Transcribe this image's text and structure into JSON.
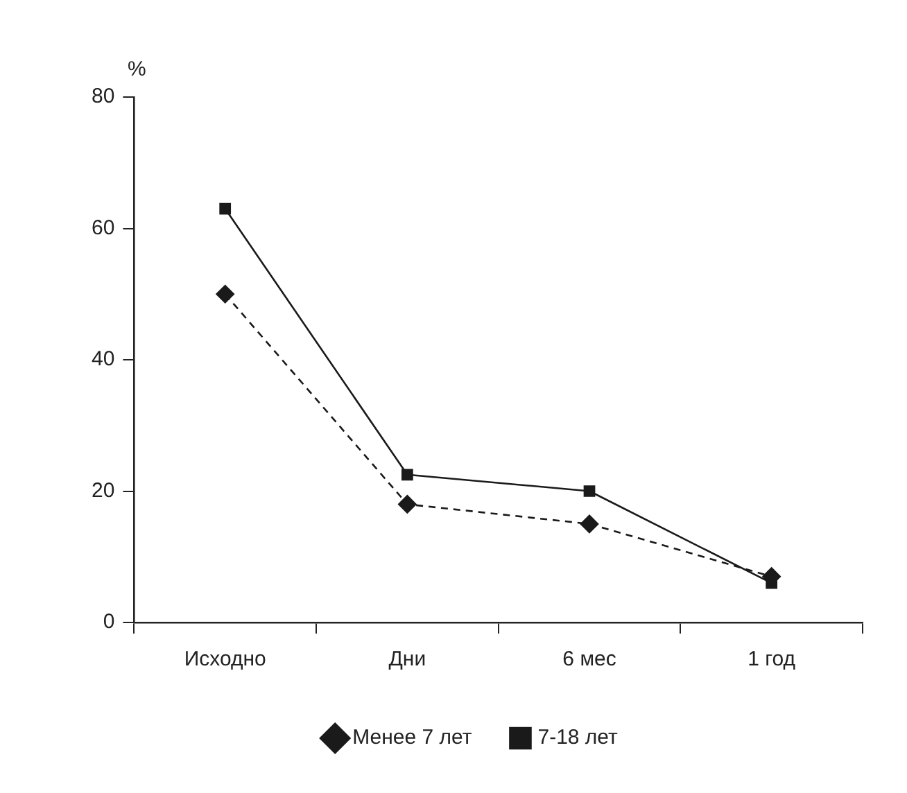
{
  "chart_data": {
    "type": "line",
    "ylabel": "%",
    "categories": [
      "Исходно",
      "Дни",
      "6 мес",
      "1 год"
    ],
    "series": [
      {
        "name": "Менее 7 лет",
        "color": "#1a1a1a",
        "values": [
          50,
          18,
          15,
          7
        ],
        "marker": "diamond",
        "line_style": "dashed"
      },
      {
        "name": "7-18 лет",
        "color": "#1a1a1a",
        "values": [
          63,
          22.5,
          20,
          6
        ],
        "marker": "square",
        "line_style": "solid"
      }
    ],
    "ylim": [
      0,
      80
    ],
    "yticks": [
      0,
      20,
      40,
      60,
      80
    ],
    "grid": false,
    "legend": "bottom"
  }
}
